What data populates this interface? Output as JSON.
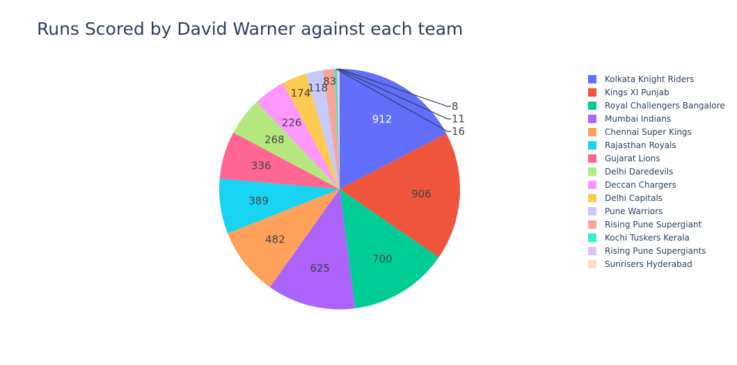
{
  "chart_data": {
    "type": "pie",
    "title": "Runs Scored by David Warner against each team",
    "legend_position": "right",
    "labels": [
      "Kolkata Knight Riders",
      "Kings XI Punjab",
      "Royal Challengers Bangalore",
      "Mumbai Indians",
      "Chennai Super Kings",
      "Rajasthan Royals",
      "Gujarat Lions",
      "Delhi Daredevils",
      "Deccan Chargers",
      "Delhi Capitals",
      "Pune Warriors",
      "Rising Pune Supergiant",
      "Kochi Tuskers Kerala",
      "Rising Pune Supergiants",
      "Sunrisers Hyderabad"
    ],
    "values": [
      912,
      906,
      700,
      625,
      482,
      389,
      336,
      268,
      226,
      174,
      118,
      83,
      16,
      11,
      8
    ],
    "colors": [
      "#636efa",
      "#EF553B",
      "#00cc96",
      "#ab63fa",
      "#FFA15A",
      "#19d3f3",
      "#FF6692",
      "#B6E880",
      "#FF97FF",
      "#FECB52",
      "#c6cafd",
      "#f7a599",
      "#2ff0c0",
      "#dcc0fb",
      "#fddcc0"
    ]
  }
}
